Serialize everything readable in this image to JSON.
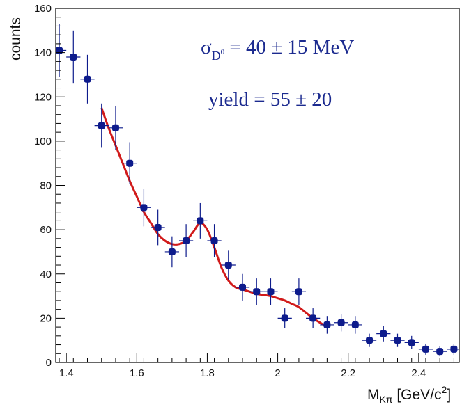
{
  "chart_data": {
    "type": "scatter",
    "ylabel": "counts",
    "xlabel": {
      "main": "M",
      "sub": "Kπ",
      "unit_open": " [GeV/c",
      "unit_sup": "2",
      "unit_close": "]"
    },
    "xlim": [
      1.37,
      2.515
    ],
    "ylim": [
      0,
      160
    ],
    "xticks": [
      1.4,
      1.6,
      1.8,
      2.0,
      2.2,
      2.4
    ],
    "xtick_labels": [
      "1.4",
      "1.6",
      "1.8",
      "2",
      "2.2",
      "2.4"
    ],
    "yticks": [
      0,
      20,
      40,
      60,
      80,
      100,
      120,
      140,
      160
    ],
    "ytick_labels": [
      "0",
      "20",
      "40",
      "60",
      "80",
      "100",
      "120",
      "140",
      "160"
    ],
    "bin_half_width": 0.02,
    "grid": false,
    "point_color": "#0d1b8c",
    "fit_color": "#d11a1a",
    "annotations": {
      "sigma": {
        "symbol": "σ",
        "sub": "D",
        "sup": "0",
        "text": " = 40 ± 15 MeV"
      },
      "yield": "yield = 55 ± 20"
    },
    "points": [
      {
        "x": 1.38,
        "y": 141,
        "err": 12
      },
      {
        "x": 1.42,
        "y": 138,
        "err": 12
      },
      {
        "x": 1.46,
        "y": 128,
        "err": 11
      },
      {
        "x": 1.5,
        "y": 107,
        "err": 10
      },
      {
        "x": 1.54,
        "y": 106,
        "err": 10
      },
      {
        "x": 1.58,
        "y": 90,
        "err": 9.5
      },
      {
        "x": 1.62,
        "y": 70,
        "err": 8.5
      },
      {
        "x": 1.66,
        "y": 61,
        "err": 8
      },
      {
        "x": 1.7,
        "y": 50,
        "err": 7
      },
      {
        "x": 1.74,
        "y": 55,
        "err": 7.5
      },
      {
        "x": 1.78,
        "y": 64,
        "err": 8
      },
      {
        "x": 1.82,
        "y": 55,
        "err": 7.5
      },
      {
        "x": 1.86,
        "y": 44,
        "err": 6.5
      },
      {
        "x": 1.9,
        "y": 34,
        "err": 6
      },
      {
        "x": 1.94,
        "y": 32,
        "err": 6
      },
      {
        "x": 1.98,
        "y": 32,
        "err": 6
      },
      {
        "x": 2.02,
        "y": 20,
        "err": 4.5
      },
      {
        "x": 2.06,
        "y": 32,
        "err": 6
      },
      {
        "x": 2.1,
        "y": 20,
        "err": 4.5
      },
      {
        "x": 2.14,
        "y": 17,
        "err": 4
      },
      {
        "x": 2.18,
        "y": 18,
        "err": 4
      },
      {
        "x": 2.22,
        "y": 17,
        "err": 4
      },
      {
        "x": 2.26,
        "y": 10,
        "err": 3
      },
      {
        "x": 2.3,
        "y": 13,
        "err": 3.5
      },
      {
        "x": 2.34,
        "y": 10,
        "err": 3
      },
      {
        "x": 2.38,
        "y": 9,
        "err": 3
      },
      {
        "x": 2.42,
        "y": 6,
        "err": 2.5
      },
      {
        "x": 2.46,
        "y": 5,
        "err": 2.2
      },
      {
        "x": 2.5,
        "y": 6,
        "err": 2.5
      }
    ],
    "fit_curve": {
      "x": [
        1.5,
        1.52,
        1.54,
        1.56,
        1.58,
        1.6,
        1.62,
        1.64,
        1.66,
        1.68,
        1.7,
        1.72,
        1.74,
        1.76,
        1.78,
        1.8,
        1.82,
        1.84,
        1.86,
        1.88,
        1.9,
        1.92,
        1.94,
        1.96,
        1.98,
        2.0,
        2.02,
        2.04,
        2.06,
        2.08,
        2.1,
        2.12,
        2.14
      ],
      "y": [
        115,
        106,
        98,
        90,
        82,
        75,
        68,
        63,
        58,
        55,
        53.5,
        53.5,
        55,
        59,
        63,
        60,
        52,
        43,
        37,
        34,
        33,
        32,
        31,
        30.5,
        30,
        29,
        28,
        26.5,
        25,
        22.5,
        20,
        18,
        16
      ]
    }
  }
}
